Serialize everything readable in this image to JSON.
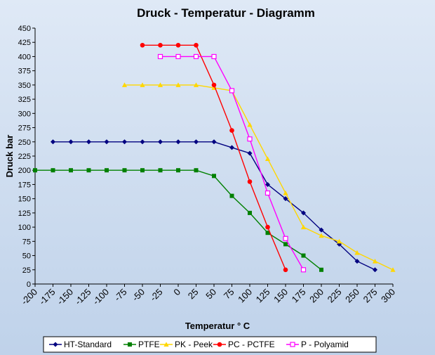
{
  "chart_data": {
    "type": "line",
    "title": "Druck - Temperatur - Diagramm",
    "xlabel": "Temperatur ° C",
    "ylabel": "Druck bar",
    "xlim": [
      -200,
      300
    ],
    "ylim": [
      0,
      450
    ],
    "xticks": [
      "-200",
      "-175",
      "-150",
      "-125",
      "-100",
      "-75",
      "-50",
      "-25",
      "0",
      "25",
      "50",
      "75",
      "100",
      "125",
      "150",
      "175",
      "200",
      "225",
      "250",
      "275",
      "300"
    ],
    "yticks": [
      "0",
      "25",
      "50",
      "75",
      "100",
      "125",
      "150",
      "175",
      "200",
      "225",
      "250",
      "275",
      "300",
      "325",
      "350",
      "375",
      "400",
      "425",
      "450"
    ],
    "grid": false,
    "legend_position": "bottom",
    "series": [
      {
        "name": "HT-Standard",
        "color": "#000080",
        "marker": "diamond",
        "points": [
          [
            -175,
            250
          ],
          [
            -150,
            250
          ],
          [
            -125,
            250
          ],
          [
            -100,
            250
          ],
          [
            -75,
            250
          ],
          [
            -50,
            250
          ],
          [
            -25,
            250
          ],
          [
            0,
            250
          ],
          [
            25,
            250
          ],
          [
            50,
            250
          ],
          [
            75,
            240
          ],
          [
            100,
            230
          ],
          [
            125,
            175
          ],
          [
            150,
            150
          ],
          [
            175,
            125
          ],
          [
            200,
            95
          ],
          [
            225,
            70
          ],
          [
            250,
            40
          ],
          [
            275,
            25
          ]
        ]
      },
      {
        "name": "PTFE",
        "color": "#008000",
        "marker": "square",
        "points": [
          [
            -200,
            200
          ],
          [
            -175,
            200
          ],
          [
            -150,
            200
          ],
          [
            -125,
            200
          ],
          [
            -100,
            200
          ],
          [
            -75,
            200
          ],
          [
            -50,
            200
          ],
          [
            -25,
            200
          ],
          [
            0,
            200
          ],
          [
            25,
            200
          ],
          [
            50,
            190
          ],
          [
            75,
            155
          ],
          [
            100,
            125
          ],
          [
            125,
            90
          ],
          [
            150,
            70
          ],
          [
            175,
            50
          ],
          [
            200,
            25
          ]
        ]
      },
      {
        "name": "PK - Peek",
        "color": "#FFD700",
        "marker": "triangle",
        "points": [
          [
            -75,
            350
          ],
          [
            -50,
            350
          ],
          [
            -25,
            350
          ],
          [
            0,
            350
          ],
          [
            25,
            350
          ],
          [
            50,
            345
          ],
          [
            75,
            340
          ],
          [
            100,
            280
          ],
          [
            125,
            220
          ],
          [
            150,
            160
          ],
          [
            175,
            100
          ],
          [
            200,
            85
          ],
          [
            225,
            75
          ],
          [
            250,
            55
          ],
          [
            275,
            40
          ],
          [
            300,
            25
          ]
        ]
      },
      {
        "name": "PC - PCTFE",
        "color": "#FF0000",
        "marker": "circle",
        "points": [
          [
            -50,
            420
          ],
          [
            -25,
            420
          ],
          [
            0,
            420
          ],
          [
            25,
            420
          ],
          [
            50,
            350
          ],
          [
            75,
            270
          ],
          [
            100,
            180
          ],
          [
            125,
            100
          ],
          [
            150,
            25
          ]
        ]
      },
      {
        "name": "P - Polyamid",
        "color": "#FF00FF",
        "marker": "open-square",
        "points": [
          [
            -25,
            400
          ],
          [
            0,
            400
          ],
          [
            25,
            400
          ],
          [
            50,
            400
          ],
          [
            75,
            340
          ],
          [
            100,
            255
          ],
          [
            125,
            160
          ],
          [
            150,
            80
          ],
          [
            175,
            25
          ]
        ]
      }
    ]
  }
}
